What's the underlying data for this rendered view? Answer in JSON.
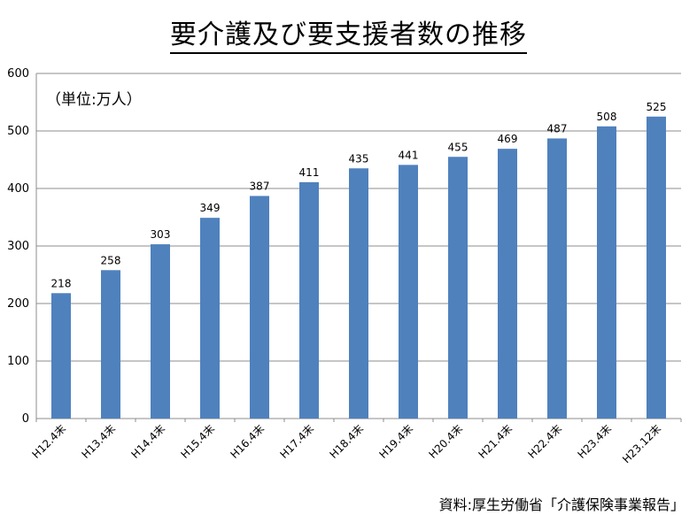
{
  "chart_data": {
    "type": "bar",
    "title": "要介護及び要支援者数の推移",
    "unit_label": "（単位:万人）",
    "source": "資料:厚生労働省「介護保険事業報告」",
    "categories": [
      "H12.4末",
      "H13.4末",
      "H14.4末",
      "H15.4末",
      "H16.4末",
      "H17.4末",
      "H18.4末",
      "H19.4末",
      "H20.4末",
      "H21.4末",
      "H22.4末",
      "H23.4末",
      "H23.12末"
    ],
    "values": [
      218,
      258,
      303,
      349,
      387,
      411,
      435,
      441,
      455,
      469,
      487,
      508,
      525
    ],
    "ylim": [
      0,
      600
    ],
    "yticks": [
      0,
      100,
      200,
      300,
      400,
      500,
      600
    ],
    "grid": true,
    "bar_color": "#4f81bd"
  }
}
